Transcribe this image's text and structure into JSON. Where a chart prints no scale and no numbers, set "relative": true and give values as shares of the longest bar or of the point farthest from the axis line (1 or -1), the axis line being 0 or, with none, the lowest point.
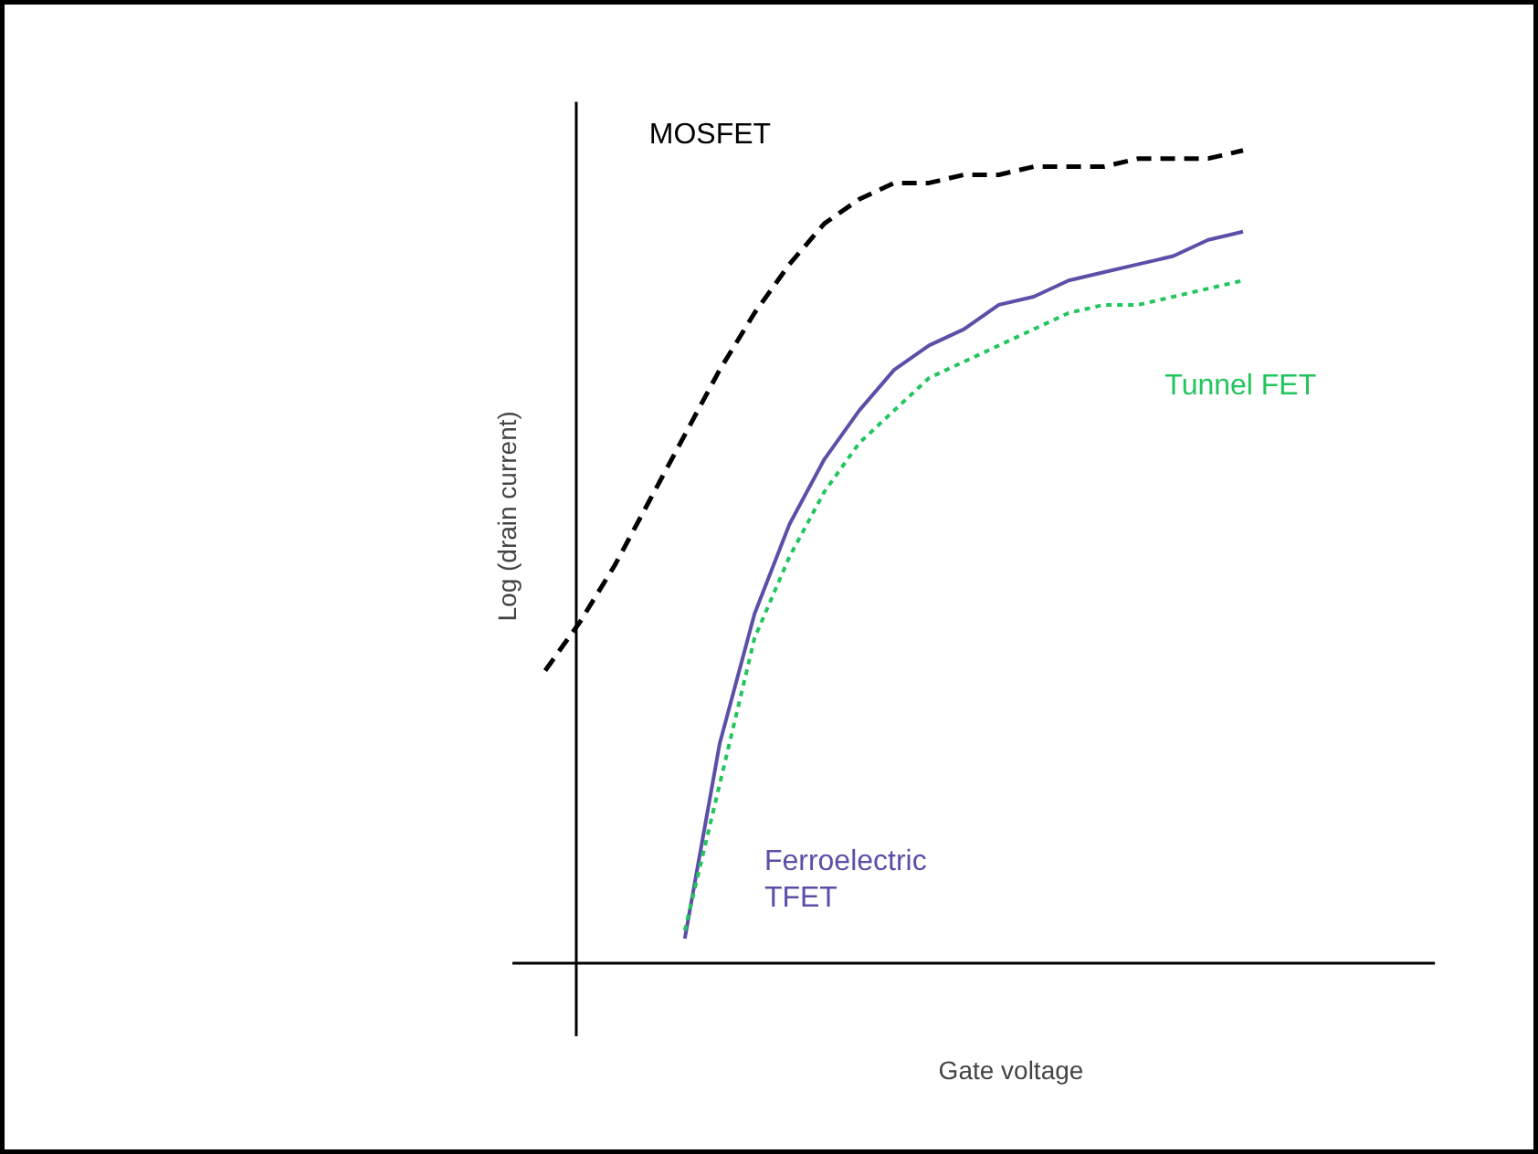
{
  "chart_data": {
    "type": "line",
    "relative": true,
    "xlabel": "Gate voltage",
    "ylabel": "Log (drain current)",
    "categories": [
      null,
      null,
      null,
      null,
      null,
      null,
      null,
      null,
      null,
      null,
      null,
      null,
      null,
      null,
      null,
      null,
      null,
      null,
      null,
      null,
      null
    ],
    "series": [
      {
        "name": "MOSFET",
        "color": "#000000",
        "line_style": "dashed",
        "values": [
          0.36,
          0.42,
          0.49,
          0.57,
          0.65,
          0.73,
          0.8,
          0.86,
          0.91,
          0.94,
          0.96,
          0.96,
          0.97,
          0.97,
          0.98,
          0.98,
          0.98,
          0.99,
          0.99,
          0.99,
          1
        ]
      },
      {
        "name": "Ferroelectric\nTFET",
        "color": "#5b4fa8",
        "line_style": "solid",
        "values": [
          null,
          null,
          null,
          null,
          0.03,
          0.27,
          0.43,
          0.54,
          0.62,
          0.68,
          0.73,
          0.76,
          0.78,
          0.81,
          0.82,
          0.84,
          0.85,
          0.86,
          0.87,
          0.89,
          0.9
        ]
      },
      {
        "name": "Tunnel FET",
        "color": "#22c55e",
        "line_style": "dotted",
        "values": [
          null,
          null,
          null,
          null,
          0.04,
          0.22,
          0.4,
          0.5,
          0.58,
          0.64,
          0.68,
          0.72,
          0.74,
          0.76,
          0.78,
          0.8,
          0.81,
          0.81,
          0.82,
          0.83,
          0.84
        ]
      }
    ]
  }
}
